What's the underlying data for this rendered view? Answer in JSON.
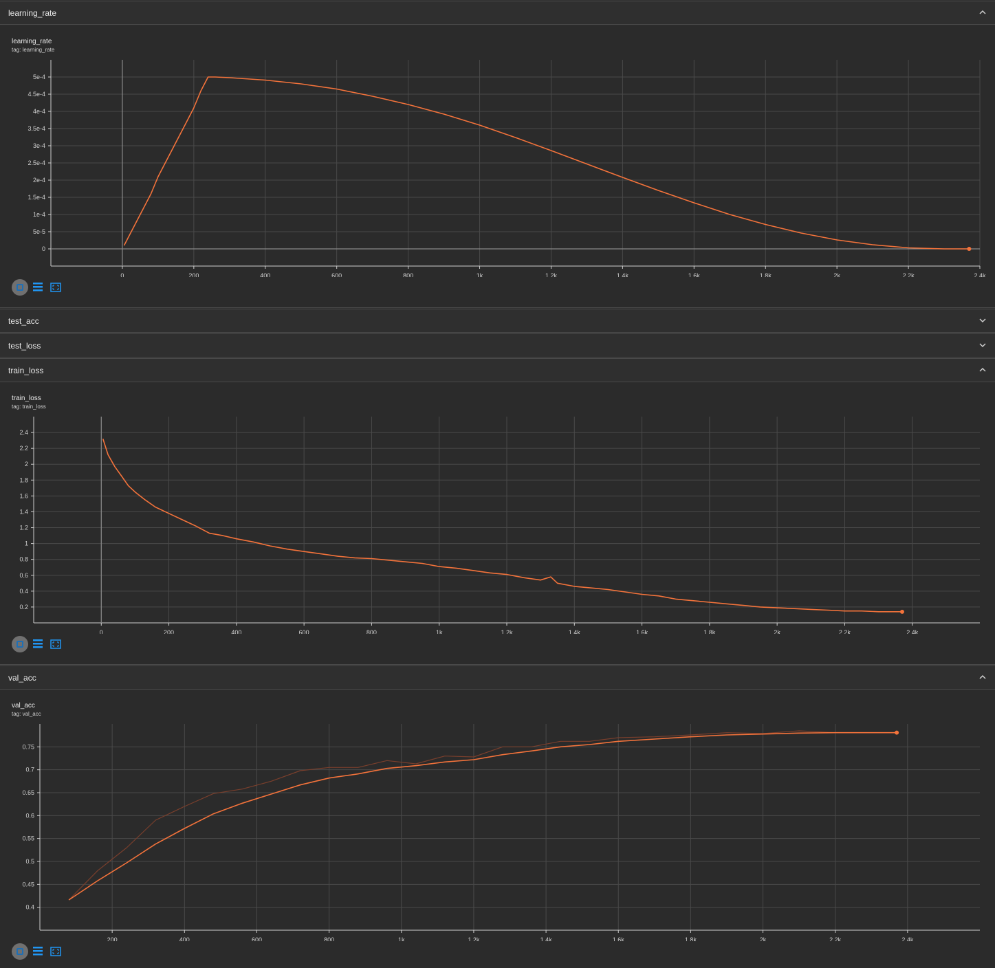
{
  "sections": {
    "learning_rate": {
      "header": "learning_rate",
      "title": "learning_rate",
      "tag": "tag: learning_rate"
    },
    "test_acc": {
      "header": "test_acc"
    },
    "test_loss": {
      "header": "test_loss"
    },
    "train_loss": {
      "header": "train_loss",
      "title": "train_loss",
      "tag": "tag: train_loss"
    },
    "val_acc": {
      "header": "val_acc",
      "title": "val_acc",
      "tag": "tag: val_acc"
    }
  },
  "colors": {
    "line": "#f4733b",
    "raw": "#7a3f2c",
    "grid": "#4a4a4a",
    "axis": "#cfcfcf",
    "accent": "#2196f3"
  },
  "icons": {
    "fit": "fit-domain-icon",
    "log": "log-scale-icon",
    "expand": "expand-icon",
    "collapse": "chevron-up-icon",
    "expandSection": "chevron-down-icon"
  },
  "chart_data": [
    {
      "id": "lr",
      "type": "line",
      "title": "learning_rate",
      "tag": "tag: learning_rate",
      "xlim": [
        -200,
        2400
      ],
      "ylim": [
        -5e-05,
        0.00055
      ],
      "xticks": [
        0,
        200,
        400,
        600,
        800,
        1000,
        1200,
        1400,
        1600,
        1800,
        2000,
        2200,
        2400
      ],
      "xtick_labels": [
        "0",
        "200",
        "400",
        "600",
        "800",
        "1k",
        "1.2k",
        "1.4k",
        "1.6k",
        "1.8k",
        "2k",
        "2.2k",
        "2.4k"
      ],
      "yticks": [
        0,
        5e-05,
        0.0001,
        0.00015,
        0.0002,
        0.00025,
        0.0003,
        0.00035,
        0.0004,
        0.00045,
        0.0005
      ],
      "ytick_labels": [
        "0",
        "5e-5",
        "1e-4",
        "1.5e-4",
        "2e-4",
        "2.5e-4",
        "3e-4",
        "3.5e-4",
        "4e-4",
        "4.5e-4",
        "5e-4"
      ],
      "marker_last": true,
      "series": [
        {
          "x": [
            5,
            20,
            40,
            60,
            80,
            100,
            120,
            140,
            160,
            180,
            200,
            220,
            240,
            260,
            300,
            400,
            500,
            600,
            700,
            800,
            900,
            1000,
            1100,
            1200,
            1300,
            1400,
            1500,
            1600,
            1700,
            1800,
            1900,
            2000,
            2100,
            2200,
            2300,
            2370
          ],
          "y": [
            1e-05,
            4e-05,
            8e-05,
            0.00012,
            0.00016,
            0.00021,
            0.00025,
            0.00029,
            0.00033,
            0.00037,
            0.00041,
            0.00046,
            0.0005,
            0.0005,
            0.000498,
            0.000491,
            0.00048,
            0.000465,
            0.000444,
            0.00042,
            0.000392,
            0.00036,
            0.000324,
            0.000286,
            0.000247,
            0.000208,
            0.00017,
            0.000134,
            0.0001,
            7.1e-05,
            4.6e-05,
            2.6e-05,
            1.2e-05,
            3e-06,
            0,
            0
          ]
        }
      ]
    },
    {
      "id": "tl",
      "type": "line",
      "title": "train_loss",
      "tag": "tag: train_loss",
      "xlim": [
        -200,
        2600
      ],
      "ylim": [
        0,
        2.6
      ],
      "xticks": [
        0,
        200,
        400,
        600,
        800,
        1000,
        1200,
        1400,
        1600,
        1800,
        2000,
        2200,
        2400
      ],
      "xtick_labels": [
        "0",
        "200",
        "400",
        "600",
        "800",
        "1k",
        "1.2k",
        "1.4k",
        "1.6k",
        "1.8k",
        "2k",
        "2.2k",
        "2.4k"
      ],
      "yticks": [
        0.2,
        0.4,
        0.6,
        0.8,
        1,
        1.2,
        1.4,
        1.6,
        1.8,
        2,
        2.2,
        2.4
      ],
      "ytick_labels": [
        "0.2",
        "0.4",
        "0.6",
        "0.8",
        "1",
        "1.2",
        "1.4",
        "1.6",
        "1.8",
        "2",
        "2.2",
        "2.4"
      ],
      "marker_last": true,
      "series": [
        {
          "x": [
            5,
            20,
            40,
            60,
            80,
            100,
            130,
            160,
            200,
            240,
            280,
            320,
            360,
            400,
            450,
            500,
            550,
            600,
            650,
            700,
            750,
            800,
            850,
            900,
            950,
            1000,
            1050,
            1100,
            1150,
            1200,
            1250,
            1300,
            1330,
            1350,
            1400,
            1450,
            1500,
            1550,
            1600,
            1650,
            1700,
            1750,
            1800,
            1850,
            1900,
            1950,
            2000,
            2050,
            2100,
            2150,
            2200,
            2250,
            2300,
            2370
          ],
          "y": [
            2.32,
            2.12,
            1.97,
            1.85,
            1.73,
            1.65,
            1.55,
            1.46,
            1.38,
            1.3,
            1.22,
            1.13,
            1.1,
            1.06,
            1.02,
            0.97,
            0.93,
            0.9,
            0.87,
            0.84,
            0.82,
            0.81,
            0.79,
            0.77,
            0.75,
            0.71,
            0.69,
            0.66,
            0.63,
            0.61,
            0.57,
            0.54,
            0.58,
            0.5,
            0.46,
            0.44,
            0.42,
            0.39,
            0.36,
            0.34,
            0.3,
            0.28,
            0.26,
            0.24,
            0.22,
            0.2,
            0.19,
            0.18,
            0.17,
            0.16,
            0.15,
            0.15,
            0.14,
            0.14
          ]
        }
      ]
    },
    {
      "id": "va",
      "type": "line",
      "title": "val_acc",
      "tag": "tag: val_acc",
      "xlim": [
        0,
        2600
      ],
      "ylim": [
        0.35,
        0.8
      ],
      "xticks": [
        200,
        400,
        600,
        800,
        1000,
        1200,
        1400,
        1600,
        1800,
        2000,
        2200,
        2400
      ],
      "xtick_labels": [
        "200",
        "400",
        "600",
        "800",
        "1k",
        "1.2k",
        "1.4k",
        "1.6k",
        "1.8k",
        "2k",
        "2.2k",
        "2.4k"
      ],
      "yticks": [
        0.4,
        0.45,
        0.5,
        0.55,
        0.6,
        0.65,
        0.7,
        0.75
      ],
      "ytick_labels": [
        "0.4",
        "0.45",
        "0.5",
        "0.55",
        "0.6",
        "0.65",
        "0.7",
        "0.75"
      ],
      "marker_last": true,
      "series": [
        {
          "x": [
            80,
            160,
            240,
            320,
            400,
            480,
            560,
            640,
            720,
            800,
            880,
            960,
            1040,
            1120,
            1200,
            1280,
            1360,
            1440,
            1520,
            1600,
            1700,
            1800,
            1900,
            2000,
            2100,
            2200,
            2370
          ],
          "y": [
            0.416,
            0.458,
            0.497,
            0.538,
            0.572,
            0.604,
            0.627,
            0.647,
            0.667,
            0.682,
            0.691,
            0.703,
            0.709,
            0.717,
            0.722,
            0.733,
            0.741,
            0.75,
            0.755,
            0.762,
            0.767,
            0.772,
            0.776,
            0.778,
            0.78,
            0.781,
            0.781
          ]
        },
        {
          "x": [
            80,
            160,
            240,
            320,
            400,
            480,
            560,
            640,
            720,
            800,
            880,
            960,
            1040,
            1120,
            1200,
            1280,
            1360,
            1440,
            1520,
            1600,
            1700,
            1800,
            1900,
            2000,
            2100,
            2200,
            2370
          ],
          "y": [
            0.416,
            0.48,
            0.53,
            0.59,
            0.62,
            0.648,
            0.658,
            0.675,
            0.698,
            0.705,
            0.705,
            0.72,
            0.713,
            0.73,
            0.728,
            0.75,
            0.75,
            0.762,
            0.762,
            0.77,
            0.772,
            0.776,
            0.781,
            0.779,
            0.785,
            0.781,
            0.781
          ]
        }
      ]
    }
  ]
}
